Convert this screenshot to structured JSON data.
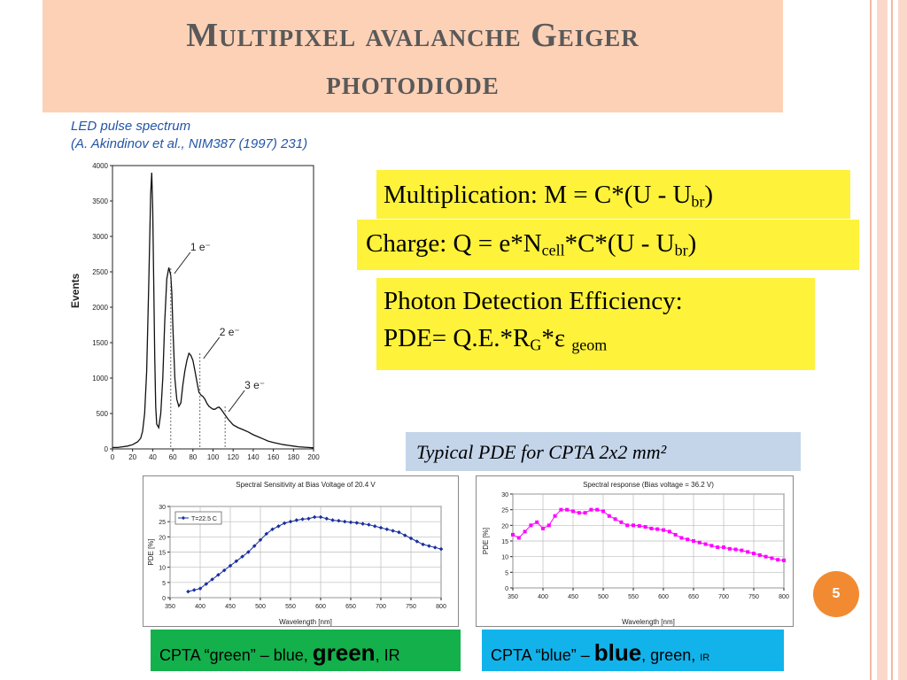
{
  "title": {
    "line1": "Multipixel avalanche Geiger",
    "line2": "photodiode"
  },
  "led_caption": {
    "line1": "LED pulse spectrum",
    "line2": "(A. Akindinov et al., NIM387 (1997) 231)"
  },
  "formulas": {
    "multiplication": {
      "pre": "Multiplication: M = C*(U - U",
      "sub": "br",
      "post": ")"
    },
    "charge": {
      "pre": "Charge: Q = e*N",
      "sub1": "cell",
      "mid": "*C*(U - U",
      "sub2": "br",
      "post": ")"
    },
    "pde": {
      "line1": "Photon Detection Efficiency:",
      "pre": "PDE= Q.E.*R",
      "sub1": "G",
      "mid": "*ε ",
      "sub2": "geom"
    }
  },
  "pde_caption": "Typical PDE for CPTA 2x2 mm²",
  "badge_green": {
    "pre": "CPTA “green” – blue, ",
    "big": "green",
    "post": ", IR"
  },
  "badge_blue": {
    "pre": "CPTA “blue” – ",
    "big": "blue",
    "mid": ", green, ",
    "small": "IR"
  },
  "page_number": "5",
  "colors": {
    "title_bg": "#fdd1b6",
    "formula_bg": "#fef23a",
    "caption_bg": "#c4d5ea",
    "green_badge": "#13b04c",
    "blue_badge": "#12b3ea",
    "page_circle": "#f28a32",
    "green_series": "#1a2f9e",
    "blue_series": "#ff00ff"
  },
  "chart_data": [
    {
      "type": "line",
      "ylabel": "Events",
      "xlim": [
        0,
        200
      ],
      "ylim": [
        0,
        4000
      ],
      "x_ticks": [
        0,
        20,
        40,
        60,
        80,
        100,
        120,
        140,
        160,
        180,
        200
      ],
      "y_ticks": [
        0,
        500,
        1000,
        1500,
        2000,
        2500,
        3000,
        3500,
        4000
      ],
      "annotations": [
        {
          "text": "1 e⁻",
          "x": 58,
          "y": 2550
        },
        {
          "text": "2 e⁻",
          "x": 87,
          "y": 1350
        },
        {
          "text": "3 e⁻",
          "x": 112,
          "y": 600
        }
      ],
      "series": [
        {
          "x": [
            0,
            5,
            10,
            15,
            20,
            25,
            28,
            30,
            32,
            34,
            36,
            38,
            39,
            40,
            41,
            42,
            43,
            44,
            46,
            48,
            50,
            52,
            54,
            56,
            58,
            59,
            60,
            62,
            64,
            66,
            68,
            70,
            72,
            74,
            76,
            78,
            80,
            82,
            84,
            86,
            88,
            90,
            92,
            94,
            96,
            98,
            100,
            102,
            104,
            106,
            108,
            110,
            112,
            115,
            120,
            125,
            130,
            135,
            140,
            145,
            150,
            155,
            160,
            165,
            170,
            175,
            180,
            185,
            190,
            195,
            200
          ],
          "y": [
            20,
            20,
            30,
            40,
            60,
            100,
            150,
            250,
            500,
            1100,
            2300,
            3600,
            3900,
            3400,
            2400,
            1300,
            600,
            350,
            300,
            500,
            1000,
            1800,
            2400,
            2560,
            2450,
            2200,
            1750,
            1000,
            700,
            600,
            650,
            900,
            1100,
            1250,
            1350,
            1320,
            1250,
            1100,
            950,
            800,
            760,
            740,
            700,
            640,
            600,
            580,
            560,
            560,
            580,
            590,
            560,
            520,
            480,
            420,
            340,
            300,
            270,
            240,
            200,
            170,
            140,
            110,
            90,
            75,
            60,
            50,
            40,
            30,
            25,
            20,
            15
          ]
        }
      ]
    },
    {
      "type": "line",
      "title": "Spectral Sensitivity at Bias Voltage of 20.4 V",
      "xlabel": "Wavelength [nm]",
      "ylabel": "PDE [%]",
      "xlim": [
        350,
        800
      ],
      "ylim": [
        0,
        30
      ],
      "x_ticks": [
        350,
        400,
        450,
        500,
        550,
        600,
        650,
        700,
        750,
        800
      ],
      "y_ticks": [
        0,
        5,
        10,
        15,
        20,
        25,
        30
      ],
      "legend": "top-left",
      "series": [
        {
          "name": "T=22.5 C",
          "x": [
            380,
            390,
            400,
            410,
            420,
            430,
            440,
            450,
            460,
            470,
            480,
            490,
            500,
            510,
            520,
            530,
            540,
            550,
            560,
            570,
            580,
            590,
            600,
            610,
            620,
            630,
            640,
            650,
            660,
            670,
            680,
            690,
            700,
            710,
            720,
            730,
            740,
            750,
            760,
            770,
            780,
            790,
            800
          ],
          "y": [
            2,
            2.5,
            3,
            4.5,
            6,
            7.5,
            9,
            10.5,
            12,
            13.5,
            15,
            17,
            19,
            21,
            22.5,
            23.5,
            24.5,
            25,
            25.5,
            25.8,
            26,
            26.5,
            26.5,
            26,
            25.5,
            25.3,
            25,
            24.8,
            24.6,
            24.3,
            24,
            23.5,
            23,
            22.5,
            22,
            21.5,
            20.5,
            19.5,
            18.5,
            17.5,
            17,
            16.5,
            16
          ]
        }
      ]
    },
    {
      "type": "line",
      "title": "Spectral response  (Bias voltage = 36.2 V)",
      "xlabel": "Wavelength [nm]",
      "ylabel": "PDE [%]",
      "xlim": [
        350,
        800
      ],
      "ylim": [
        0,
        30
      ],
      "x_ticks": [
        350,
        400,
        450,
        500,
        550,
        600,
        650,
        700,
        750,
        800
      ],
      "y_ticks": [
        0,
        5,
        10,
        15,
        20,
        25,
        30
      ],
      "series": [
        {
          "x": [
            350,
            360,
            370,
            380,
            390,
            400,
            410,
            420,
            430,
            440,
            450,
            460,
            470,
            480,
            490,
            500,
            510,
            520,
            530,
            540,
            550,
            560,
            570,
            580,
            590,
            600,
            610,
            620,
            630,
            640,
            650,
            660,
            670,
            680,
            690,
            700,
            710,
            720,
            730,
            740,
            750,
            760,
            770,
            780,
            790,
            800
          ],
          "y": [
            17,
            16,
            18,
            20,
            21,
            19,
            20,
            23,
            25,
            25,
            24.5,
            24,
            24,
            25,
            25,
            24.5,
            23,
            22,
            21,
            20,
            20,
            19.8,
            19.5,
            19,
            18.8,
            18.5,
            18,
            17,
            16,
            15.5,
            15,
            14.5,
            14,
            13.5,
            13,
            13,
            12.5,
            12.3,
            12,
            11.5,
            11,
            10.5,
            10,
            9.5,
            9,
            8.8
          ]
        }
      ]
    }
  ]
}
